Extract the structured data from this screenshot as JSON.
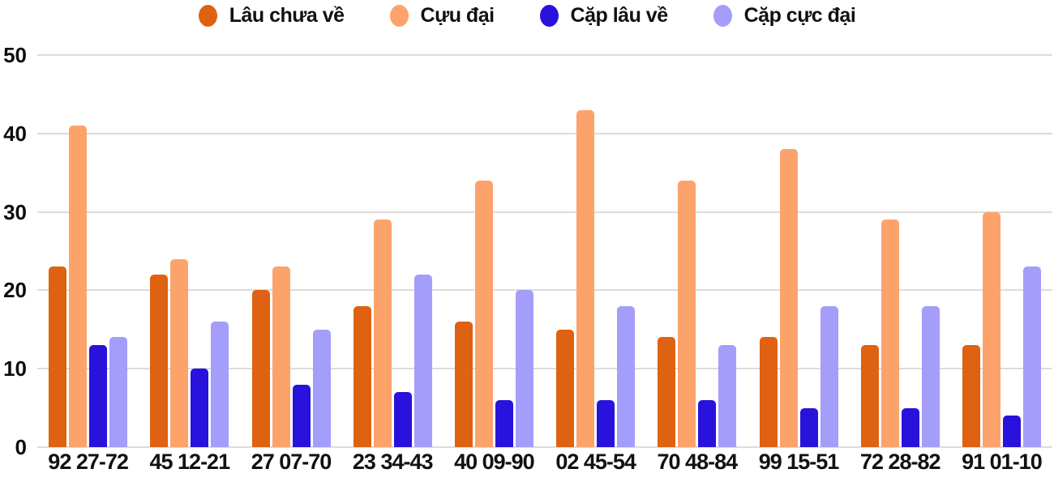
{
  "chart_data": {
    "type": "bar",
    "title": "",
    "categories": [
      "92 27-72",
      "45 12-21",
      "27 07-70",
      "23 34-43",
      "40 09-90",
      "02 45-54",
      "70 48-84",
      "99 15-51",
      "72 28-82",
      "91 01-10"
    ],
    "series": [
      {
        "name": "Lâu chưa về",
        "color": "#DE6212",
        "values": [
          23,
          22,
          20,
          18,
          16,
          15,
          14,
          14,
          13,
          13
        ]
      },
      {
        "name": "Cựu đại",
        "color": "#FCA36B",
        "values": [
          41,
          24,
          23,
          29,
          34,
          43,
          34,
          38,
          29,
          30
        ]
      },
      {
        "name": "Cặp lâu về",
        "color": "#2912DC",
        "values": [
          13,
          10,
          8,
          7,
          6,
          6,
          6,
          5,
          5,
          4
        ]
      },
      {
        "name": "Cặp cực đại",
        "color": "#A49DFA",
        "values": [
          14,
          16,
          15,
          22,
          20,
          18,
          13,
          18,
          18,
          23
        ]
      }
    ],
    "xlabel": "",
    "ylabel": "",
    "ylim": [
      0,
      50
    ],
    "yticks": [
      0,
      10,
      20,
      30,
      40,
      50
    ],
    "grid": true,
    "legend_position": "top"
  },
  "colors": {
    "background": "#FFFFFF",
    "grid_line": "#DCDCDC",
    "axis_text": "#111111"
  }
}
